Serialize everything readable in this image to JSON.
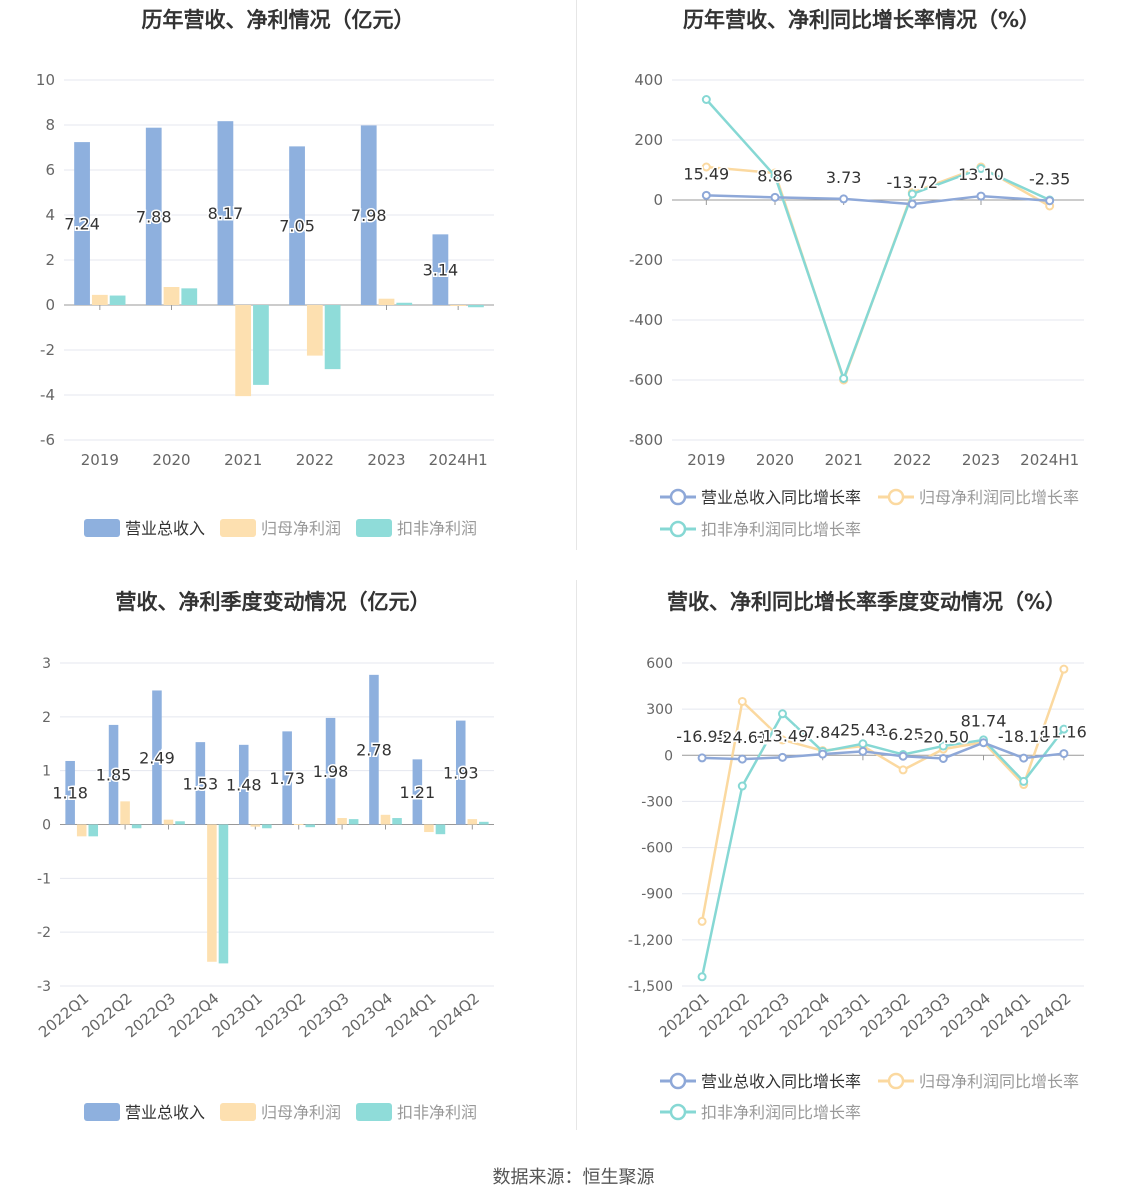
{
  "source": "数据来源：恒生聚源",
  "colors": {
    "revenue": "#8eb0de",
    "net": "#fde0b0",
    "deducted": "#8fdcd9",
    "revLine": "#8ea8d8",
    "netLine": "#fbd9a0",
    "dedLine": "#86d8d4",
    "grid": "#e4e7ef",
    "axis": "#999999",
    "tick": "#666666"
  },
  "chart_data": [
    {
      "type": "bar",
      "title": "历年营收、净利情况（亿元）",
      "categories": [
        "2019",
        "2020",
        "2021",
        "2022",
        "2023",
        "2024H1"
      ],
      "ylim": [
        -6,
        10
      ],
      "yticks": [
        10,
        8,
        6,
        4,
        2,
        0,
        -2,
        -4,
        -6
      ],
      "series": [
        {
          "name": "营业总收入",
          "values": [
            7.24,
            7.88,
            8.17,
            7.05,
            7.98,
            3.14
          ],
          "labels": [
            "7.24",
            "7.88",
            "8.17",
            "7.05",
            "7.98",
            "3.14"
          ]
        },
        {
          "name": "归母净利润",
          "values": [
            0.45,
            0.8,
            -4.05,
            -2.25,
            0.28,
            -0.03
          ]
        },
        {
          "name": "扣非净利润",
          "values": [
            0.42,
            0.74,
            -3.55,
            -2.85,
            0.1,
            -0.1
          ]
        }
      ]
    },
    {
      "type": "line",
      "title": "历年营收、净利同比增长率情况（%）",
      "categories": [
        "2019",
        "2020",
        "2021",
        "2022",
        "2023",
        "2024H1"
      ],
      "ylim": [
        -800,
        400
      ],
      "yticks": [
        400,
        200,
        0,
        -200,
        -400,
        -600,
        -800
      ],
      "series": [
        {
          "name": "营业总收入同比增长率",
          "values": [
            15.49,
            8.86,
            3.73,
            -13.72,
            13.1,
            -2.35
          ],
          "labels": [
            "15.49",
            "8.86",
            "3.73",
            "-13.72",
            "13.10",
            "-2.35"
          ]
        },
        {
          "name": "归母净利润同比增长率",
          "values": [
            110,
            90,
            -600,
            25,
            110,
            -20
          ]
        },
        {
          "name": "扣非净利润同比增长率",
          "values": [
            335,
            80,
            -595,
            20,
            105,
            0
          ]
        }
      ]
    },
    {
      "type": "bar",
      "title": "营收、净利季度变动情况（亿元）",
      "categories": [
        "2022Q1",
        "2022Q2",
        "2022Q3",
        "2022Q4",
        "2023Q1",
        "2023Q2",
        "2023Q3",
        "2023Q4",
        "2024Q1",
        "2024Q2"
      ],
      "ylim": [
        -3,
        3
      ],
      "yticks": [
        3,
        2,
        1,
        0,
        -1,
        -2,
        -3
      ],
      "series": [
        {
          "name": "营业总收入",
          "values": [
            1.18,
            1.85,
            2.49,
            1.53,
            1.48,
            1.73,
            1.98,
            2.78,
            1.21,
            1.93
          ],
          "labels": [
            "1.18",
            "1.85",
            "2.49",
            "1.53",
            "1.48",
            "1.73",
            "1.98",
            "2.78",
            "1.21",
            "1.93"
          ]
        },
        {
          "name": "归母净利润",
          "values": [
            -0.22,
            0.43,
            0.09,
            -2.55,
            -0.04,
            0.01,
            0.12,
            0.18,
            -0.14,
            0.1
          ]
        },
        {
          "name": "扣非净利润",
          "values": [
            -0.22,
            -0.07,
            0.06,
            -2.58,
            -0.07,
            -0.05,
            0.1,
            0.12,
            -0.18,
            0.05
          ]
        }
      ]
    },
    {
      "type": "line",
      "title": "营收、净利同比增长率季度变动情况（%）",
      "categories": [
        "2022Q1",
        "2022Q2",
        "2022Q3",
        "2022Q4",
        "2023Q1",
        "2023Q2",
        "2023Q3",
        "2023Q4",
        "2024Q1",
        "2024Q2"
      ],
      "ylim": [
        -1500,
        600
      ],
      "yticks": [
        600,
        300,
        0,
        -300,
        -600,
        -900,
        -1200,
        -1500
      ],
      "yticklabels": [
        "600",
        "300",
        "0",
        "-300",
        "-600",
        "-900",
        "-1,200",
        "-1,500"
      ],
      "series": [
        {
          "name": "营业总收入同比增长率",
          "values": [
            -16.95,
            -24.61,
            -13.49,
            7.84,
            25.43,
            -6.25,
            -20.5,
            81.74,
            -18.18,
            11.16
          ],
          "labels": [
            "-16.95",
            "-24.61",
            "-13.49",
            "7.84",
            "25.43",
            "-6.25",
            "-20.50",
            "81.74",
            "-18.18",
            "11.16"
          ]
        },
        {
          "name": "归母净利润同比增长率",
          "values": [
            -1080,
            350,
            100,
            30,
            60,
            -95,
            40,
            85,
            -190,
            560
          ]
        },
        {
          "name": "扣非净利润同比增长率",
          "values": [
            -1440,
            -200,
            270,
            25,
            75,
            5,
            60,
            100,
            -170,
            170
          ]
        }
      ]
    }
  ]
}
